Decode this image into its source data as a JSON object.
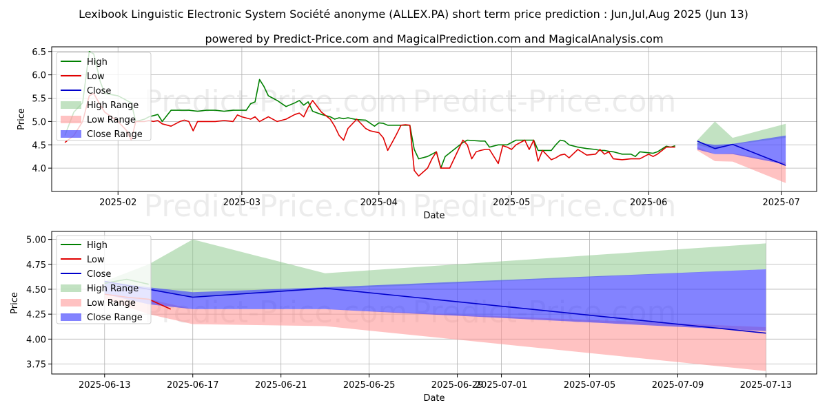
{
  "title": "Lexibook Linguistic Electronic System Société anonyme (ALLEX.PA) short term price prediction : Jun,Jul,Aug 2025 (Jun 13)",
  "subtitle": "powered by Predict-Price.com and MagicalPrediction.com and MagicalAnalysis.com",
  "watermark": "Predict-Price.com",
  "colors": {
    "high": "#008000",
    "low": "#e00000",
    "close": "#0000cc",
    "high_range": "#8fca8f",
    "low_range": "#ff8f8f",
    "close_range": "#4040ff"
  },
  "chart_data": [
    {
      "type": "line",
      "title": "",
      "xlabel": "Date",
      "ylabel": "Price",
      "ylim": [
        3.5,
        6.6
      ],
      "grid": true,
      "legend_position": "upper-left",
      "xticks": [
        "2025-02",
        "2025-03",
        "2025-04",
        "2025-05",
        "2025-06",
        "2025-07"
      ],
      "xtick_days": [
        12,
        40,
        71,
        101,
        132,
        162
      ],
      "yticks": [
        "4.0",
        "4.5",
        "5.0",
        "5.5",
        "6.0",
        "6.5"
      ],
      "legend": [
        "High",
        "Low",
        "Close",
        "High Range",
        "Low Range",
        "Close Range"
      ],
      "x_unit": "days since 2025-01-20",
      "series": [
        {
          "name": "High",
          "x": [
            0,
            2,
            4,
            5.5,
            6.5,
            8,
            9,
            12,
            15,
            16,
            18,
            19,
            21,
            22,
            24,
            26,
            28,
            30,
            32,
            34,
            36,
            38,
            40,
            41,
            42,
            43,
            44,
            45,
            46,
            47,
            48,
            50,
            52,
            53,
            54,
            55,
            56,
            58,
            60,
            61,
            62,
            63,
            64,
            66,
            68,
            70,
            71,
            72,
            73,
            74,
            75,
            76,
            77,
            78,
            79,
            80,
            82,
            83,
            84,
            85,
            86,
            88,
            90,
            91,
            94,
            95,
            96,
            98,
            100,
            102,
            104,
            105,
            106,
            107,
            108,
            110,
            111,
            112,
            113,
            114,
            116,
            118,
            120,
            121,
            122,
            123,
            124,
            126,
            128,
            129,
            130,
            132,
            133,
            134,
            136,
            137,
            138
          ],
          "values": [
            4.7,
            5.2,
            5.4,
            6.5,
            6.45,
            5.85,
            5.6,
            5.55,
            5.4,
            5.0,
            5.05,
            5.1,
            5.15,
            5.0,
            5.24,
            5.24,
            5.24,
            5.22,
            5.24,
            5.24,
            5.22,
            5.24,
            5.24,
            5.24,
            5.38,
            5.42,
            5.9,
            5.75,
            5.55,
            5.5,
            5.45,
            5.32,
            5.4,
            5.45,
            5.35,
            5.42,
            5.22,
            5.15,
            5.1,
            5.05,
            5.08,
            5.06,
            5.08,
            5.04,
            5.03,
            4.9,
            4.97,
            4.96,
            4.92,
            4.92,
            4.92,
            4.92,
            4.92,
            4.92,
            4.4,
            4.2,
            4.25,
            4.3,
            4.35,
            4.0,
            4.25,
            4.4,
            4.55,
            4.6,
            4.58,
            4.58,
            4.45,
            4.5,
            4.5,
            4.6,
            4.6,
            4.6,
            4.6,
            4.38,
            4.38,
            4.38,
            4.5,
            4.6,
            4.58,
            4.5,
            4.45,
            4.42,
            4.4,
            4.38,
            4.38,
            4.36,
            4.35,
            4.3,
            4.3,
            4.25,
            4.35,
            4.33,
            4.32,
            4.35,
            4.47,
            4.45,
            4.48
          ],
          "dense_extra": [
            4.5,
            4.48,
            4.6,
            4.6
          ]
        },
        {
          "name": "Low",
          "x": [
            0,
            2,
            4,
            5.5,
            6.5,
            8,
            9,
            12,
            13,
            14,
            15,
            16,
            18,
            19,
            20,
            21,
            22,
            24,
            26,
            27,
            28,
            29,
            30,
            32,
            34,
            36,
            37,
            38,
            39,
            40,
            42,
            43,
            44,
            46,
            48,
            50,
            51,
            52,
            53,
            54,
            55,
            56,
            58,
            60,
            61,
            62,
            63,
            64,
            66,
            68,
            69,
            70,
            71,
            72,
            73,
            74,
            75,
            76,
            77,
            78,
            79,
            80,
            82,
            83,
            84,
            85,
            86,
            87,
            88,
            90,
            91,
            92,
            93,
            94,
            95,
            96,
            98,
            99,
            100,
            101,
            102,
            104,
            105,
            106,
            107,
            108,
            110,
            111,
            112,
            113,
            114,
            116,
            118,
            120,
            121,
            122,
            123,
            124,
            126,
            128,
            129,
            130,
            132,
            133,
            134,
            136,
            137,
            138
          ],
          "values": [
            4.55,
            4.7,
            5.0,
            5.55,
            5.6,
            5.35,
            5.2,
            5.0,
            4.9,
            4.8,
            4.6,
            5.0,
            5.0,
            5.02,
            5.0,
            5.02,
            4.95,
            4.9,
            5.0,
            5.03,
            5.0,
            4.8,
            5.0,
            5.0,
            5.0,
            5.02,
            5.01,
            5.0,
            5.14,
            5.1,
            5.05,
            5.1,
            5.0,
            5.1,
            5.0,
            5.05,
            5.1,
            5.15,
            5.18,
            5.1,
            5.3,
            5.45,
            5.2,
            5.05,
            4.9,
            4.7,
            4.6,
            4.85,
            5.05,
            4.85,
            4.8,
            4.78,
            4.76,
            4.65,
            4.38,
            4.55,
            4.73,
            4.92,
            4.93,
            4.92,
            3.95,
            3.83,
            4.0,
            4.2,
            4.35,
            4.0,
            4.0,
            4.0,
            4.2,
            4.6,
            4.5,
            4.2,
            4.35,
            4.38,
            4.4,
            4.4,
            4.1,
            4.48,
            4.45,
            4.4,
            4.5,
            4.6,
            4.4,
            4.6,
            4.15,
            4.38,
            4.18,
            4.22,
            4.28,
            4.3,
            4.22,
            4.4,
            4.28,
            4.3,
            4.4,
            4.3,
            4.35,
            4.2,
            4.18,
            4.2,
            4.2,
            4.2,
            4.3,
            4.25,
            4.3,
            4.45,
            4.45,
            4.45
          ]
        },
        {
          "name": "Close",
          "x": [
            143,
            147,
            151,
            163
          ],
          "values": [
            4.58,
            4.42,
            4.51,
            4.06
          ]
        },
        {
          "name": "High Range",
          "x": [
            143,
            147,
            151,
            163
          ],
          "upper": [
            4.6,
            5.0,
            4.65,
            4.95
          ],
          "lower": [
            4.5,
            4.4,
            4.5,
            4.65
          ]
        },
        {
          "name": "Low Range",
          "x": [
            143,
            147,
            151,
            163
          ],
          "upper": [
            4.45,
            4.3,
            4.32,
            4.12
          ],
          "lower": [
            4.38,
            4.15,
            4.14,
            3.68
          ]
        },
        {
          "name": "Close Range",
          "x": [
            143,
            147,
            151,
            163
          ],
          "upper": [
            4.55,
            4.5,
            4.52,
            4.7
          ],
          "lower": [
            4.4,
            4.3,
            4.3,
            4.08
          ]
        }
      ]
    },
    {
      "type": "line",
      "title": "",
      "xlabel": "Date",
      "ylabel": "Price",
      "ylim": [
        3.65,
        5.08
      ],
      "grid": true,
      "legend_position": "upper-left",
      "xticks": [
        "2025-06-13",
        "2025-06-17",
        "2025-06-21",
        "2025-06-25",
        "2025-06-29",
        "2025-07-01",
        "2025-07-05",
        "2025-07-09",
        "2025-07-13"
      ],
      "xtick_days": [
        0,
        4,
        8,
        12,
        16,
        18,
        22,
        26,
        30
      ],
      "yticks": [
        "3.75",
        "4.00",
        "4.25",
        "4.50",
        "4.75",
        "5.00"
      ],
      "legend": [
        "High",
        "Low",
        "Close",
        "High Range",
        "Low Range",
        "Close Range"
      ],
      "x_unit": "days since 2025-06-13",
      "series": [
        {
          "name": "High",
          "x": [
            0,
            1,
            2
          ],
          "values": [
            4.56,
            4.6,
            4.55
          ]
        },
        {
          "name": "Low",
          "x": [
            0,
            1,
            2,
            3
          ],
          "values": [
            4.45,
            4.42,
            4.4,
            4.3
          ]
        },
        {
          "name": "Close",
          "x": [
            0,
            2,
            4,
            10,
            30
          ],
          "values": [
            4.58,
            4.5,
            4.42,
            4.51,
            4.06
          ]
        },
        {
          "name": "High Range",
          "x": [
            0,
            2,
            4,
            10,
            30
          ],
          "upper": [
            4.58,
            4.75,
            5.0,
            4.66,
            4.96
          ],
          "lower": [
            4.52,
            4.5,
            4.42,
            4.5,
            4.7
          ]
        },
        {
          "name": "Low Range",
          "x": [
            0,
            2,
            4,
            10,
            30
          ],
          "upper": [
            4.44,
            4.4,
            4.3,
            4.3,
            4.12
          ],
          "lower": [
            4.4,
            4.25,
            4.15,
            4.13,
            3.68
          ]
        },
        {
          "name": "Close Range",
          "x": [
            0,
            2,
            4,
            10,
            30
          ],
          "upper": [
            4.58,
            4.52,
            4.47,
            4.52,
            4.7
          ],
          "lower": [
            4.45,
            4.35,
            4.3,
            4.3,
            4.08
          ]
        }
      ]
    }
  ]
}
